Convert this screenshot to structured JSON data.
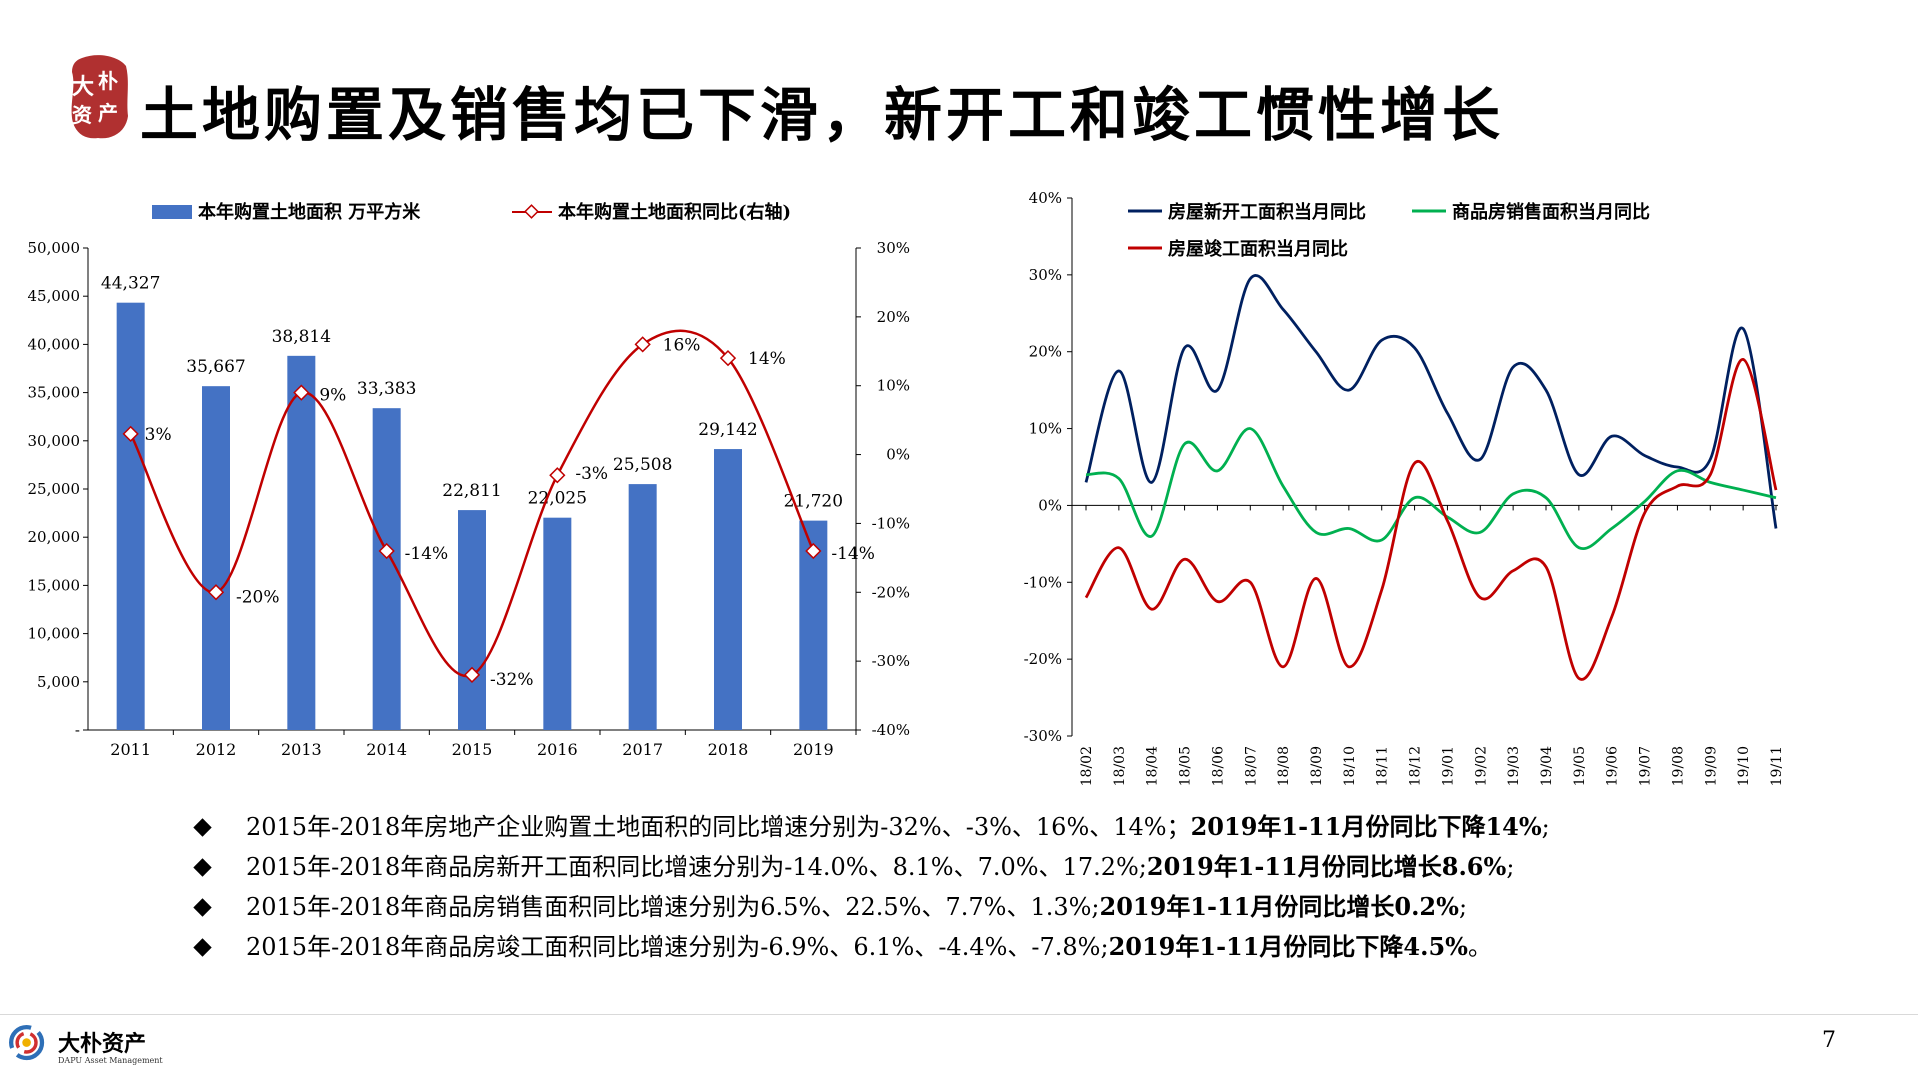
{
  "header": {
    "title": "土地购置及销售均已下滑，新开工和竣工惯性增长",
    "seal_text": "大朴资产"
  },
  "colors": {
    "bar_blue": "#4472C4",
    "land_yoy_red": "#C00000",
    "new_start_navy": "#002060",
    "sales_green": "#00B050",
    "completion_red": "#C00000"
  },
  "chart_data": [
    {
      "type": "bar",
      "categories": [
        "2011",
        "2012",
        "2013",
        "2014",
        "2015",
        "2016",
        "2017",
        "2018",
        "2019"
      ],
      "series": [
        {
          "name": "本年购置土地面积 万平方米",
          "type": "bar",
          "axis": "left",
          "values": [
            44327,
            35667,
            38814,
            33383,
            22811,
            22025,
            25508,
            29142,
            21720
          ],
          "labels": [
            "44,327",
            "35,667",
            "38,814",
            "33,383",
            "22,811",
            "22,025",
            "25,508",
            "29,142",
            "21,720"
          ]
        },
        {
          "name": "本年购置土地面积同比(右轴)",
          "type": "line",
          "axis": "right",
          "values": [
            3,
            -20,
            9,
            -14,
            -32,
            -3,
            16,
            14,
            -14
          ],
          "labels": [
            "3%",
            "-20%",
            "9%",
            "-14%",
            "-32%",
            "-3%",
            "16%",
            "14%",
            "-14%"
          ]
        }
      ],
      "ylim": [
        0,
        50000
      ],
      "y_ticks": [
        "-",
        "5,000",
        "10,000",
        "15,000",
        "20,000",
        "25,000",
        "30,000",
        "35,000",
        "40,000",
        "45,000",
        "50,000"
      ],
      "y2lim": [
        -40,
        30
      ],
      "y2_ticks": [
        "-40%",
        "-30%",
        "-20%",
        "-10%",
        "0%",
        "10%",
        "20%",
        "30%"
      ],
      "legend": "top"
    },
    {
      "type": "line",
      "x": [
        "18/02",
        "18/03",
        "18/04",
        "18/05",
        "18/06",
        "18/07",
        "18/08",
        "18/09",
        "18/10",
        "18/11",
        "18/12",
        "19/01",
        "19/02",
        "19/03",
        "19/04",
        "19/05",
        "19/06",
        "19/07",
        "19/08",
        "19/09",
        "19/10",
        "19/11"
      ],
      "series": [
        {
          "name": "房屋新开工面积当月同比",
          "values": [
            3.0,
            17.5,
            3.0,
            20.5,
            15.0,
            29.5,
            25.5,
            20.0,
            15.0,
            21.5,
            20.5,
            12.0,
            6.0,
            18.0,
            15.0,
            4.0,
            9.0,
            6.5,
            5.0,
            6.0,
            23.0,
            -3.0
          ]
        },
        {
          "name": "商品房销售面积当月同比",
          "values": [
            4.0,
            3.5,
            -4.0,
            8.0,
            4.5,
            10.0,
            2.5,
            -3.5,
            -3.0,
            -4.5,
            1.0,
            -1.5,
            -3.5,
            1.5,
            1.0,
            -5.5,
            -3.0,
            0.5,
            4.5,
            3.0,
            2.0,
            1.0
          ]
        },
        {
          "name": "房屋竣工面积当月同比",
          "values": [
            -12.0,
            -5.5,
            -13.5,
            -7.0,
            -12.5,
            -10.0,
            -21.0,
            -9.5,
            -21.0,
            -11.0,
            5.5,
            -2.0,
            -12.0,
            -8.5,
            -8.0,
            -22.5,
            -14.5,
            -1.0,
            2.5,
            4.0,
            19.0,
            2.0
          ]
        }
      ],
      "ylim": [
        -30,
        40
      ],
      "y_ticks": [
        "-30%",
        "-20%",
        "-10%",
        "0%",
        "10%",
        "20%",
        "30%",
        "40%"
      ],
      "legend": "top"
    }
  ],
  "bullets": [
    {
      "text": "2015年-2018年房地产企业购置土地面积的同比增速分别为-32%、-3%、16%、14%；",
      "bold": "2019年1-11月份同比下降14%",
      "tail": ";"
    },
    {
      "text": "2015年-2018年商品房新开工面积同比增速分别为-14.0%、8.1%、7.0%、17.2%;",
      "bold": "2019年1-11月份同比增长8.6%",
      "tail": ";"
    },
    {
      "text": "2015年-2018年商品房销售面积同比增速分别为6.5%、22.5%、7.7%、1.3%;",
      "bold": "2019年1-11月份同比增长0.2%",
      "tail": ";"
    },
    {
      "text": "2015年-2018年商品房竣工面积同比增速分别为-6.9%、6.1%、-4.4%、-7.8%;",
      "bold": "2019年1-11月份同比下降4.5%",
      "tail": "。"
    }
  ],
  "footer": {
    "company_name": "大朴资产",
    "company_en": "DAPU Asset Management",
    "page_number": "7"
  }
}
